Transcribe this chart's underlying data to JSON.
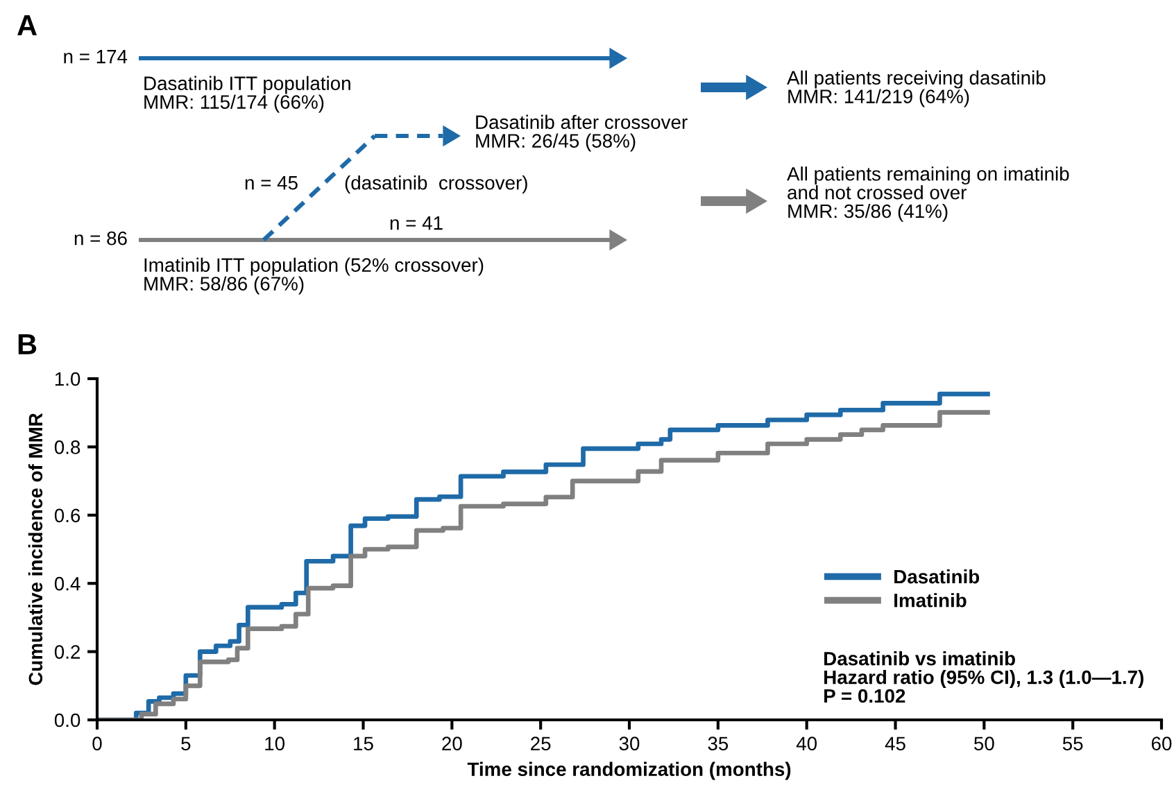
{
  "chart_data": [
    {
      "type": "other",
      "title": "A",
      "annotations": [
        "n = 174",
        "Dasatinib ITT population\nMMR: 115/174 (66%)",
        "Dasatinib after crossover\nMMR: 26/45 (58%)",
        "n = 45",
        "(dasatinib  crossover)",
        "n = 41",
        "n = 86",
        "Imatinib ITT population (52% crossover)\nMMR: 58/86 (67%)",
        "All patients receiving dasatinib\nMMR: 141/219 (64%)",
        "All patients remaining on imatinib\nand not crossed over\nMMR: 35/86 (41%)"
      ]
    },
    {
      "type": "step",
      "title": "B",
      "xlabel": "Time since randomization (months)",
      "ylabel": "Cumulative incidence of MMR",
      "xlim": [
        0,
        60
      ],
      "xticks": [
        0,
        5,
        10,
        15,
        20,
        25,
        30,
        35,
        40,
        45,
        50,
        55,
        60
      ],
      "ylim": [
        0,
        1
      ],
      "yticks": [
        {
          "value": 0,
          "label": "0.0"
        },
        {
          "value": 0.2,
          "label": "0.2"
        },
        {
          "value": 0.4,
          "label": "0.4"
        },
        {
          "value": 0.6,
          "label": "0.6"
        },
        {
          "value": 0.8,
          "label": "0.8"
        },
        {
          "value": 1,
          "label": "1.0"
        }
      ],
      "grid": false,
      "legend": "right",
      "line_style": "solid",
      "annotations": [
        "Dasatinib vs imatinib\nHazard ratio (95% CI), 1.3 (1.0—1.7)\nP = 0.102"
      ],
      "series": [
        {
          "name": "Dasatinib",
          "color": "#1f6aa8",
          "x": [
            0,
            1.7,
            2.2,
            2.9,
            3.5,
            4.3,
            5.0,
            5.8,
            6.7,
            7.5,
            8.0,
            8.5,
            10.4,
            11.2,
            11.8,
            13.3,
            14.3,
            15.1,
            16.4,
            18.0,
            19.3,
            20.5,
            22.9,
            25.3,
            27.4,
            30.5,
            31.8,
            32.3,
            35.0,
            37.8,
            40.0,
            41.9,
            44.3,
            47.5,
            50.2
          ],
          "values": [
            0,
            0,
            0.02,
            0.054,
            0.065,
            0.077,
            0.13,
            0.2,
            0.217,
            0.23,
            0.278,
            0.33,
            0.339,
            0.372,
            0.465,
            0.48,
            0.569,
            0.59,
            0.596,
            0.646,
            0.654,
            0.714,
            0.727,
            0.748,
            0.795,
            0.809,
            0.822,
            0.85,
            0.863,
            0.879,
            0.894,
            0.908,
            0.928,
            0.955,
            0.955
          ]
        },
        {
          "name": "Imatinib",
          "color": "#808080",
          "x": [
            0,
            2.0,
            2.5,
            3.3,
            4.3,
            5.0,
            5.8,
            7.4,
            7.9,
            8.5,
            10.4,
            11.2,
            11.9,
            13.3,
            14.3,
            15.1,
            16.4,
            18.0,
            19.5,
            20.5,
            22.9,
            25.3,
            26.8,
            30.5,
            31.8,
            35.0,
            37.8,
            40.0,
            41.9,
            43.1,
            44.3,
            47.5,
            50.2
          ],
          "values": [
            0,
            0,
            0.017,
            0.047,
            0.061,
            0.1,
            0.17,
            0.176,
            0.21,
            0.267,
            0.274,
            0.31,
            0.386,
            0.393,
            0.48,
            0.5,
            0.507,
            0.555,
            0.562,
            0.626,
            0.633,
            0.653,
            0.7,
            0.728,
            0.761,
            0.782,
            0.809,
            0.822,
            0.836,
            0.85,
            0.863,
            0.901,
            0.901
          ]
        }
      ]
    }
  ]
}
